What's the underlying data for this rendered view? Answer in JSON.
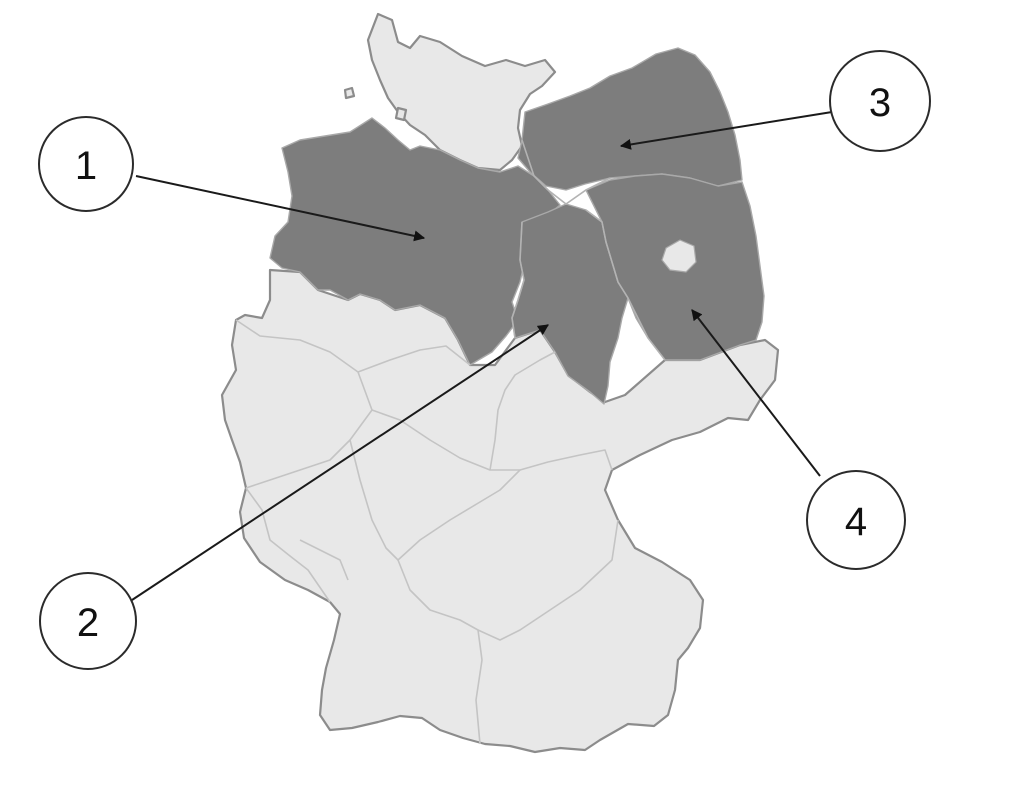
{
  "colors": {
    "background": "#ffffff",
    "country_fill": "#e8e8e8",
    "highlighted_fill": "#7d7d7d",
    "border": "#8c8c8c"
  },
  "callouts": [
    {
      "label": "1"
    },
    {
      "label": "2"
    },
    {
      "label": "3"
    },
    {
      "label": "4"
    }
  ]
}
